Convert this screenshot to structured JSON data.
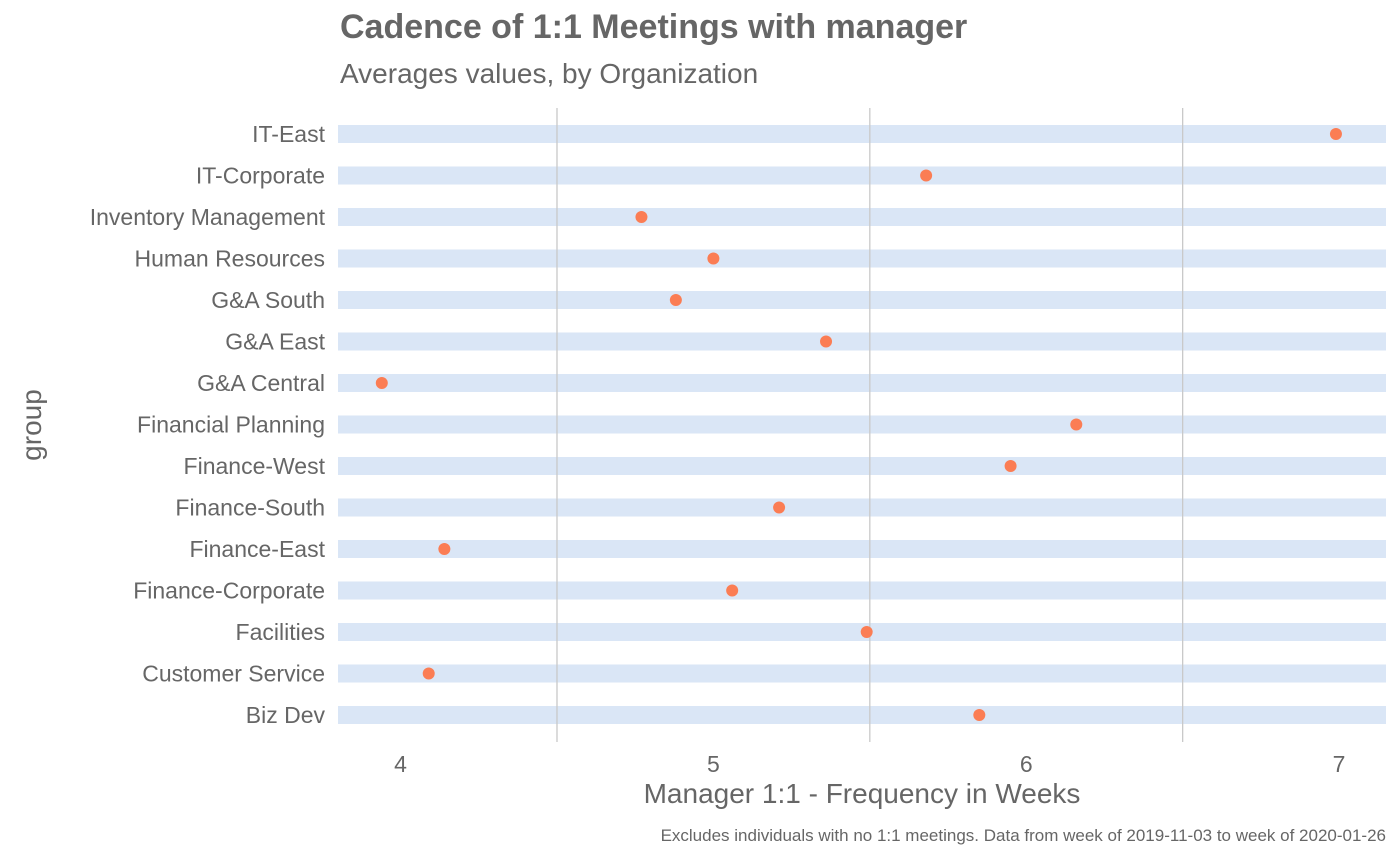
{
  "colors": {
    "bar": "#dae6f6",
    "point": "#fb7d54",
    "grid": "#c9c9c9",
    "text": "#666666",
    "background": "#ffffff"
  },
  "chart_data": {
    "type": "scatter",
    "title": "Cadence of 1:1 Meetings with manager",
    "subtitle": "Averages values, by  Organization",
    "xlabel": "Manager 1:1 -  Frequency in Weeks",
    "ylabel": "group",
    "caption": "Excludes individuals with no 1:1 meetings.  Data from week of 2019-11-03 to week of 2020-01-26",
    "xlim": [
      3.8,
      7.15
    ],
    "x_ticks": [
      4,
      5,
      6,
      7
    ],
    "x_minor_gridlines": [
      4.5,
      5.5,
      6.5
    ],
    "grid": "vertical minor only",
    "legend": "none",
    "categories": [
      "IT-East",
      "IT-Corporate",
      "Inventory Management",
      "Human Resources",
      "G&A South",
      "G&A East",
      "G&A Central",
      "Financial Planning",
      "Finance-West",
      "Finance-South",
      "Finance-East",
      "Finance-Corporate",
      "Facilities",
      "Customer Service",
      "Biz Dev"
    ],
    "values": [
      6.99,
      5.68,
      4.77,
      5.0,
      4.88,
      5.36,
      3.94,
      6.16,
      5.95,
      5.21,
      4.14,
      5.06,
      5.49,
      4.09,
      5.85
    ]
  }
}
